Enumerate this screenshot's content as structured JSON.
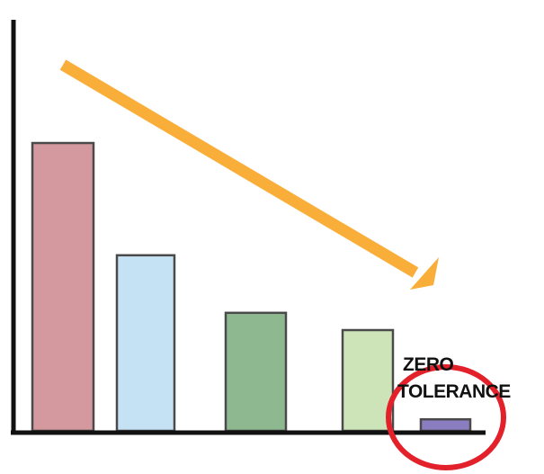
{
  "chart_data": {
    "type": "bar",
    "categories": [
      "",
      "",
      "",
      "",
      ""
    ],
    "values": [
      100,
      61,
      41,
      35,
      4
    ],
    "colors": [
      "#d4989f",
      "#c5e2f5",
      "#8eb88f",
      "#cde4b9",
      "#8b7ec0"
    ],
    "title": "",
    "xlabel": "",
    "ylabel": "",
    "ylim": [
      0,
      125
    ],
    "grid": false,
    "legend": "none",
    "trend_arrow": {
      "direction": "down-right",
      "color": "#f9ae3a"
    },
    "annotation": {
      "lines": [
        "ZERO",
        "TOLERANCE"
      ],
      "highlight_color": "#e3212b",
      "target_bar_index": 4
    }
  }
}
